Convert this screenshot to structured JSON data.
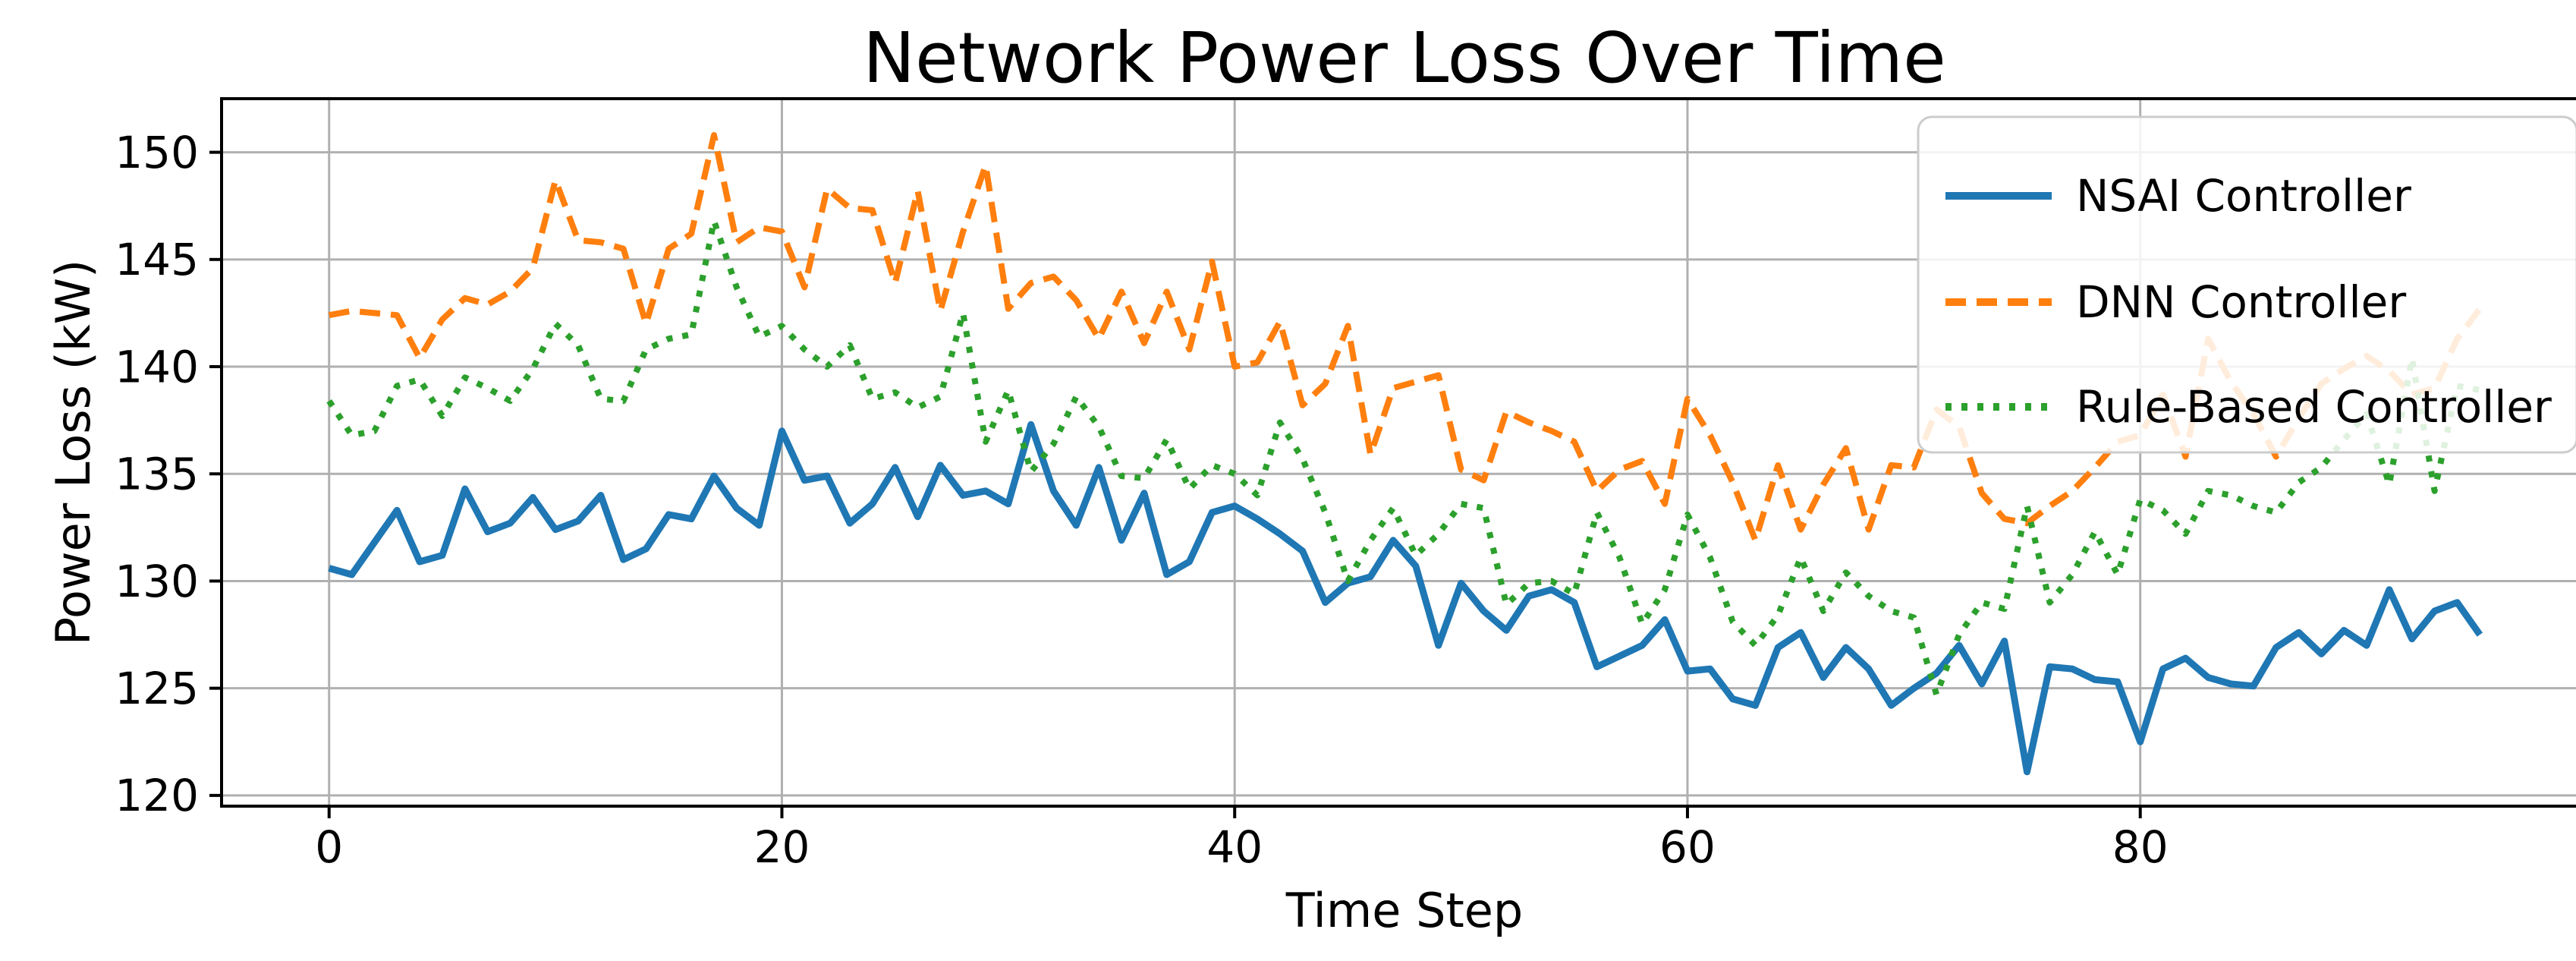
{
  "chart_data": {
    "type": "line",
    "title": "Network Power Loss Over Time",
    "xlabel": "Time Step",
    "ylabel": "Power Loss (kW)",
    "xlim": [
      -4.75,
      99.75
    ],
    "ylim": [
      119.5,
      152.5
    ],
    "xticks": [
      0,
      20,
      40,
      60,
      80
    ],
    "yticks": [
      120,
      125,
      130,
      135,
      140,
      145,
      150
    ],
    "grid": true,
    "grid_color": "#b0b0b0",
    "background_color": "#ffffff",
    "spine_color": "#000000",
    "text_color": "#000000",
    "legend_position": "upper right",
    "x": [
      0,
      1,
      2,
      3,
      4,
      5,
      6,
      7,
      8,
      9,
      10,
      11,
      12,
      13,
      14,
      15,
      16,
      17,
      18,
      19,
      20,
      21,
      22,
      23,
      24,
      25,
      26,
      27,
      28,
      29,
      30,
      31,
      32,
      33,
      34,
      35,
      36,
      37,
      38,
      39,
      40,
      41,
      42,
      43,
      44,
      45,
      46,
      47,
      48,
      49,
      50,
      51,
      52,
      53,
      54,
      55,
      56,
      57,
      58,
      59,
      60,
      61,
      62,
      63,
      64,
      65,
      66,
      67,
      68,
      69,
      70,
      71,
      72,
      73,
      74,
      75,
      76,
      77,
      78,
      79,
      80,
      81,
      82,
      83,
      84,
      85,
      86,
      87,
      88,
      89,
      90,
      91,
      92,
      93,
      94,
      95
    ],
    "series": [
      {
        "name": "NSAI Controller",
        "color": "#1f77b4",
        "style": "solid",
        "values": [
          130.6,
          130.3,
          131.8,
          133.3,
          130.9,
          131.2,
          134.3,
          132.3,
          132.7,
          133.9,
          132.4,
          132.8,
          134.0,
          131.0,
          131.5,
          133.1,
          132.9,
          134.9,
          133.4,
          132.6,
          137.0,
          134.7,
          134.9,
          132.7,
          133.6,
          135.3,
          133.0,
          135.4,
          134.0,
          134.2,
          133.6,
          137.3,
          134.2,
          132.6,
          135.3,
          131.9,
          134.1,
          130.3,
          130.9,
          133.2,
          133.5,
          132.9,
          132.2,
          131.4,
          129.0,
          129.9,
          130.2,
          131.9,
          130.7,
          127.0,
          129.9,
          128.6,
          127.7,
          129.3,
          129.6,
          129.0,
          126.0,
          126.5,
          127.0,
          128.2,
          125.8,
          125.9,
          124.5,
          124.2,
          126.9,
          127.6,
          125.5,
          126.9,
          125.9,
          124.2,
          125.0,
          125.7,
          127.0,
          125.2,
          127.2,
          121.1,
          126.0,
          125.9,
          125.4,
          125.3,
          122.5,
          125.9,
          126.4,
          125.5,
          125.2,
          125.1,
          126.9,
          127.6,
          126.6,
          127.7,
          127.0,
          129.6,
          127.3,
          128.6,
          129.0,
          127.5
        ]
      },
      {
        "name": "DNN Controller",
        "color": "#ff7f0e",
        "style": "dashed",
        "values": [
          142.4,
          142.6,
          142.5,
          142.4,
          140.4,
          142.2,
          143.2,
          142.9,
          143.5,
          144.6,
          148.7,
          145.9,
          145.8,
          145.5,
          142.0,
          145.5,
          146.2,
          150.8,
          145.8,
          146.5,
          146.3,
          143.7,
          148.3,
          147.4,
          147.3,
          143.9,
          148.2,
          142.6,
          146.3,
          149.4,
          142.7,
          143.9,
          144.2,
          143.1,
          141.3,
          143.5,
          141.1,
          143.5,
          140.8,
          144.9,
          140.0,
          140.2,
          142.1,
          138.2,
          139.2,
          141.9,
          135.9,
          139.0,
          139.3,
          139.6,
          135.2,
          134.7,
          137.9,
          137.4,
          137.0,
          136.5,
          134.2,
          135.2,
          135.6,
          133.6,
          138.5,
          136.8,
          134.6,
          131.9,
          135.4,
          132.4,
          134.5,
          136.2,
          132.4,
          135.4,
          135.3,
          138.0,
          137.2,
          134.1,
          132.9,
          132.7,
          133.5,
          134.2,
          135.3,
          136.5,
          136.8,
          138.7,
          135.8,
          141.3,
          139.3,
          137.8,
          135.8,
          137.6,
          139.2,
          139.9,
          140.5,
          139.8,
          138.7,
          139.0,
          141.3,
          142.7
        ]
      },
      {
        "name": "Rule-Based Controller",
        "color": "#2ca02c",
        "style": "dotted",
        "values": [
          138.4,
          136.8,
          137.0,
          139.1,
          139.4,
          137.7,
          139.5,
          139.0,
          138.4,
          139.9,
          142.0,
          141.0,
          138.5,
          138.4,
          140.8,
          141.3,
          141.5,
          146.8,
          143.7,
          141.4,
          141.9,
          140.8,
          140.0,
          141.0,
          138.5,
          138.8,
          138.1,
          138.6,
          142.5,
          136.5,
          138.9,
          135.1,
          136.4,
          138.6,
          137.2,
          134.9,
          134.8,
          136.6,
          134.3,
          135.4,
          135.0,
          134.0,
          137.4,
          135.7,
          133.2,
          130.0,
          131.9,
          133.4,
          131.2,
          132.2,
          133.6,
          133.4,
          128.9,
          129.9,
          130.0,
          129.4,
          133.2,
          131.1,
          128.0,
          129.6,
          133.1,
          131.1,
          128.1,
          127.0,
          128.4,
          131.1,
          128.6,
          130.4,
          129.3,
          128.6,
          128.3,
          124.7,
          127.5,
          129.0,
          128.7,
          133.5,
          129.0,
          130.3,
          132.3,
          130.3,
          133.8,
          133.3,
          132.2,
          134.2,
          134.0,
          133.5,
          133.2,
          134.6,
          135.3,
          136.6,
          137.8,
          134.5,
          140.4,
          134.2,
          139.1,
          138.9
        ]
      }
    ]
  }
}
